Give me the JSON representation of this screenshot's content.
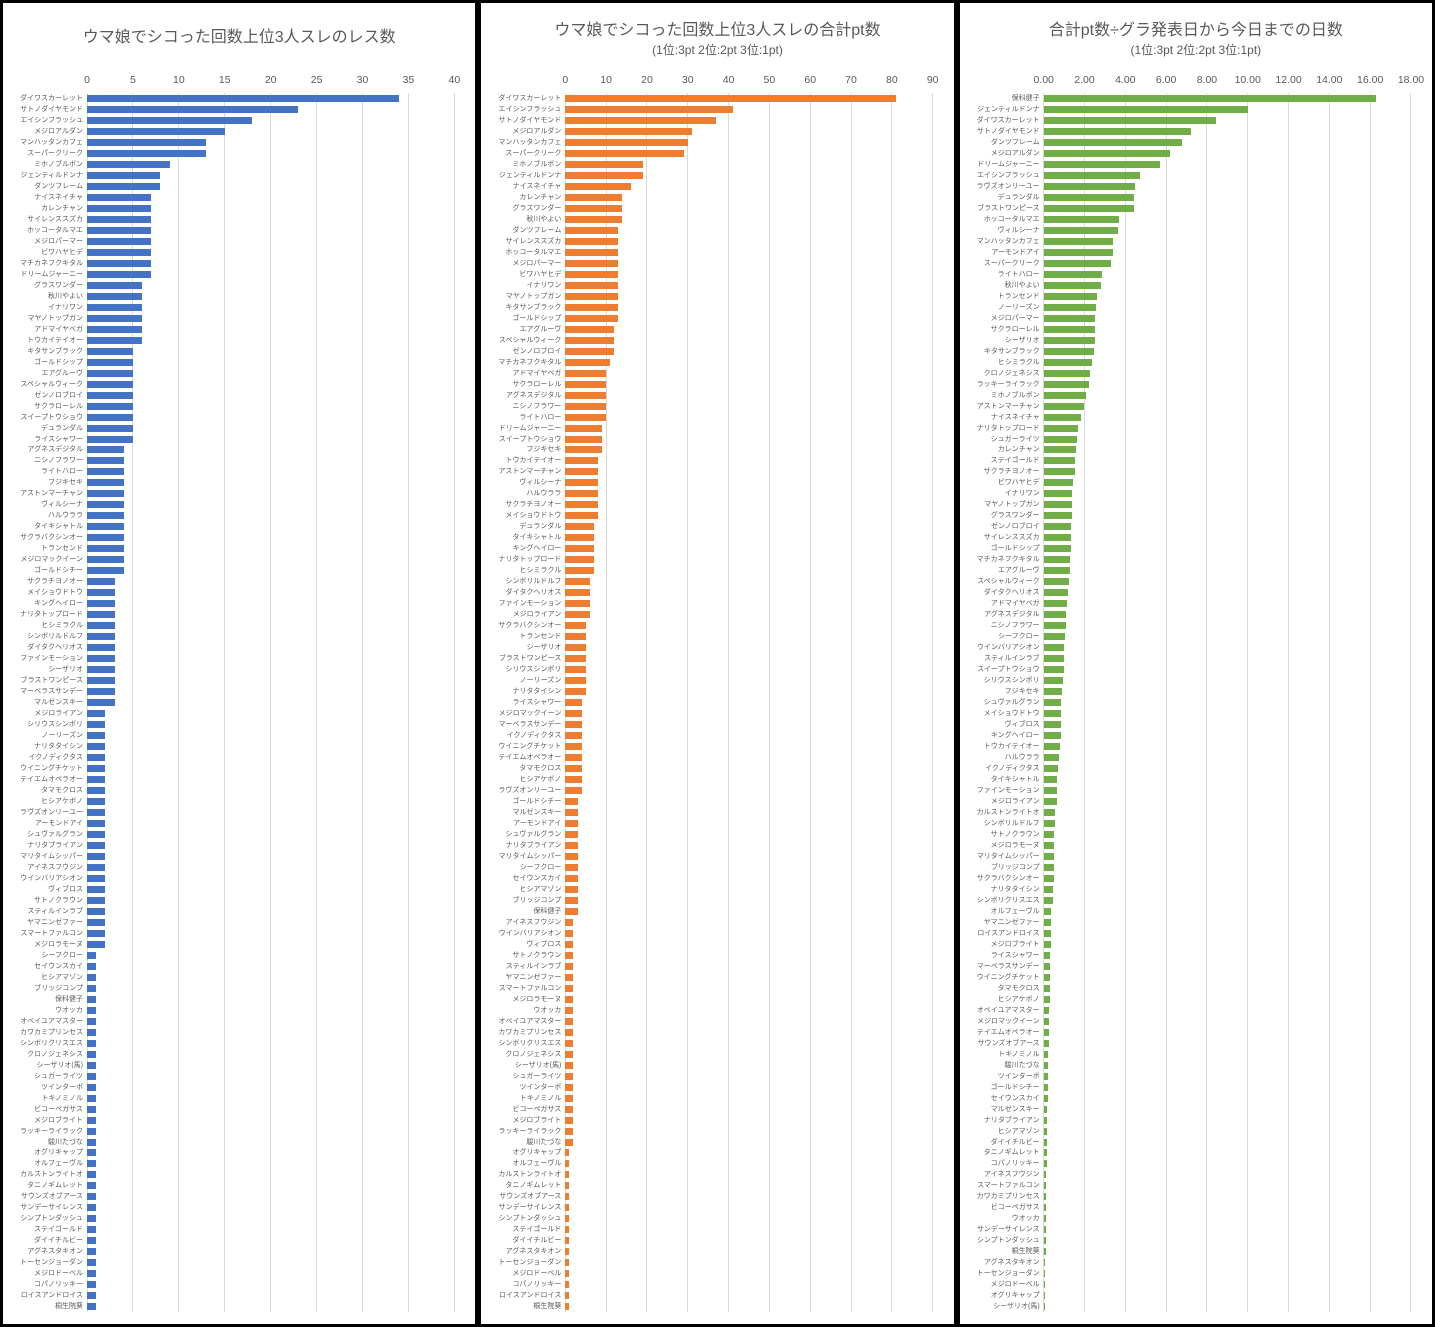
{
  "colors": {
    "blue": "#4472C4",
    "orange": "#ED7D31",
    "green": "#70AD47",
    "grid": "#D9D9D9",
    "text": "#595959"
  },
  "chart_data": [
    {
      "type": "bar",
      "orientation": "horizontal",
      "title": "ウマ娘でシコった回数上位3人スレのレス数",
      "subtitle": "",
      "legend": "none",
      "grid": "vertical",
      "color": "#4472C4",
      "axis": {
        "min": 0,
        "max": 40,
        "step": 5,
        "ticks": [
          "0",
          "5",
          "10",
          "15",
          "20",
          "25",
          "30",
          "35",
          "40"
        ]
      },
      "categories": [
        "ダイワスカーレット",
        "サトノダイヤモンド",
        "エイシンフラッシュ",
        "メジロアルダン",
        "マンハッタンカフェ",
        "スーパークリーク",
        "ミホノブルボン",
        "ジェンティルドンナ",
        "ダンツフレーム",
        "ナイスネイチャ",
        "カレンチャン",
        "サイレンススズカ",
        "ホッコータルマエ",
        "メジロパーマー",
        "ビワハヤヒデ",
        "マチカネフクキタル",
        "ドリームジャーニー",
        "グラスワンダー",
        "秋川やよい",
        "イナリワン",
        "マヤノトップガン",
        "アドマイヤベガ",
        "トウカイテイオー",
        "キタサンブラック",
        "ゴールドシップ",
        "エアグルーヴ",
        "スペシャルウィーク",
        "ゼンノロブロイ",
        "サクラローレル",
        "スイープトウショウ",
        "デュランダル",
        "ライスシャワー",
        "アグネスデジタル",
        "ニシノフラワー",
        "ライトハロー",
        "フジキセキ",
        "アストンマーチャン",
        "ヴィルシーナ",
        "ハルウララ",
        "タイキシャトル",
        "サクラバクシンオー",
        "トランセンド",
        "メジロマックイーン",
        "ゴールドシチー",
        "サクラチヨノオー",
        "メイショウドトウ",
        "キングヘイロー",
        "ナリタトップロード",
        "ヒシミラクル",
        "シンボリルドルフ",
        "ダイタクヘリオス",
        "ファインモーション",
        "シーザリオ",
        "ブラストワンピース",
        "マーベラスサンデー",
        "マルゼンスキー",
        "メジロライアン",
        "シリウスシンボリ",
        "ノーリーズン",
        "ナリタタイシン",
        "イクノディクタス",
        "ウイニングチケット",
        "テイエムオペラオー",
        "タマモクロス",
        "ヒシアケボノ",
        "ラヴズオンリーユー",
        "アーモンドアイ",
        "シュヴァルグラン",
        "ナリタブライアン",
        "マリタイムシッパー",
        "アイネスフウジン",
        "ウインバリアシオン",
        "ヴィブロス",
        "サトノクラウン",
        "スティルインラブ",
        "ヤマニンゼファー",
        "スマートファルコン",
        "メジロラモーヌ",
        "シーフクロー",
        "セイウンスカイ",
        "ヒシアマゾン",
        "ブリッジコンプ",
        "保科健子",
        "ウオッカ",
        "オベイユアマスター",
        "カワカミプリンセス",
        "シンボリクリスエス",
        "クロノジェネシス",
        "シーザリオ(馬)",
        "シュガーライツ",
        "ツインターボ",
        "トキノミノル",
        "ビコーペガサス",
        "メジロブライト",
        "ラッキーライラック",
        "駿川たづな",
        "オグリキャップ",
        "オルフェーヴル",
        "カルストンライトオ",
        "タニノギムレット",
        "サウンズオブアース",
        "サンデーサイレンス",
        "シンプトンダッシュ",
        "ステイゴールド",
        "ダイイチルビー",
        "アグネスタキオン",
        "トーセンジョーダン",
        "メジロドーベル",
        "コパノリッキー",
        "ロイスアンドロイス",
        "桐生院葵"
      ],
      "values": [
        34,
        23,
        18,
        15,
        13,
        13,
        9,
        8,
        8,
        7,
        7,
        7,
        7,
        7,
        7,
        7,
        7,
        6,
        6,
        6,
        6,
        6,
        6,
        5,
        5,
        5,
        5,
        5,
        5,
        5,
        5,
        5,
        4,
        4,
        4,
        4,
        4,
        4,
        4,
        4,
        4,
        4,
        4,
        4,
        3,
        3,
        3,
        3,
        3,
        3,
        3,
        3,
        3,
        3,
        3,
        3,
        2,
        2,
        2,
        2,
        2,
        2,
        2,
        2,
        2,
        2,
        2,
        2,
        2,
        2,
        2,
        2,
        2,
        2,
        2,
        2,
        2,
        2,
        1,
        1,
        1,
        1,
        1,
        1,
        1,
        1,
        1,
        1,
        1,
        1,
        1,
        1,
        1,
        1,
        1,
        1,
        1,
        1,
        1,
        1,
        1,
        1,
        1,
        1,
        1,
        1,
        1,
        1,
        1,
        1,
        1
      ]
    },
    {
      "type": "bar",
      "orientation": "horizontal",
      "title": "ウマ娘でシコった回数上位3人スレの合計pt数",
      "subtitle": "(1位:3pt 2位:2pt 3位:1pt)",
      "legend": "none",
      "grid": "vertical",
      "color": "#ED7D31",
      "axis": {
        "min": 0,
        "max": 90,
        "step": 10,
        "ticks": [
          "0",
          "10",
          "20",
          "30",
          "40",
          "50",
          "60",
          "70",
          "80",
          "90"
        ]
      },
      "categories": [
        "ダイワスカーレット",
        "エイシンフラッシュ",
        "サトノダイヤモンド",
        "メジロアルダン",
        "マンハッタンカフェ",
        "スーパークリーク",
        "ミホノブルボン",
        "ジェンティルドンナ",
        "ナイスネイチャ",
        "カレンチャン",
        "グラスワンダー",
        "秋川やよい",
        "ダンツフレーム",
        "サイレンススズカ",
        "ホッコータルマエ",
        "メジロパーマー",
        "ビワハヤヒデ",
        "イナリワン",
        "マヤノトップガン",
        "キタサンブラック",
        "ゴールドシップ",
        "エアグルーヴ",
        "スペシャルウィーク",
        "ゼンノロブロイ",
        "マチカネフクキタル",
        "アドマイヤベガ",
        "サクラローレル",
        "アグネスデジタル",
        "ニシノフラワー",
        "ライトハロー",
        "ドリームジャーニー",
        "スイープトウショウ",
        "フジキセキ",
        "トウカイテイオー",
        "アストンマーチャン",
        "ヴィルシーナ",
        "ハルウララ",
        "サクラチヨノオー",
        "メイショウドトウ",
        "デュランダル",
        "タイキシャトル",
        "キングヘイロー",
        "ナリタトップロード",
        "ヒシミラクル",
        "シンボリルドルフ",
        "ダイタクヘリオス",
        "ファインモーション",
        "メジロライアン",
        "サクラバクシンオー",
        "トランセンド",
        "シーザリオ",
        "ブラストワンピース",
        "シリウスシンボリ",
        "ノーリーズン",
        "ナリタタイシン",
        "ライスシャワー",
        "メジロマックイーン",
        "マーベラスサンデー",
        "イクノディクタス",
        "ウイニングチケット",
        "テイエムオペラオー",
        "タマモクロス",
        "ヒシアケボノ",
        "ラヴズオンリーユー",
        "ゴールドシチー",
        "マルゼンスキー",
        "アーモンドアイ",
        "シュヴァルグラン",
        "ナリタブライアン",
        "マリタイムシッパー",
        "シーフクロー",
        "セイウンスカイ",
        "ヒシアマゾン",
        "ブリッジコンプ",
        "保科健子",
        "アイネスフウジン",
        "ウインバリアシオン",
        "ヴィブロス",
        "サトノクラウン",
        "スティルインラブ",
        "ヤマニンゼファー",
        "スマートファルコン",
        "メジロラモーヌ",
        "ウオッカ",
        "オベイユアマスター",
        "カワカミプリンセス",
        "シンボリクリスエス",
        "クロノジェネシス",
        "シーザリオ(馬)",
        "シュガーライツ",
        "ツインターボ",
        "トキノミノル",
        "ビコーペガサス",
        "メジロブライト",
        "ラッキーライラック",
        "駿川たづな",
        "オグリキャップ",
        "オルフェーヴル",
        "カルストンライトオ",
        "タニノギムレット",
        "サウンズオブアース",
        "サンデーサイレンス",
        "シンプトンダッシュ",
        "ステイゴールド",
        "ダイイチルビー",
        "アグネスタキオン",
        "トーセンジョーダン",
        "メジロドーベル",
        "コパノリッキー",
        "ロイスアンドロイス",
        "桐生院葵"
      ],
      "values": [
        81,
        41,
        37,
        31,
        30,
        29,
        19,
        19,
        16,
        14,
        14,
        14,
        13,
        13,
        13,
        13,
        13,
        13,
        13,
        13,
        13,
        12,
        12,
        12,
        11,
        10,
        10,
        10,
        10,
        10,
        9,
        9,
        9,
        8,
        8,
        8,
        8,
        8,
        8,
        7,
        7,
        7,
        7,
        7,
        6,
        6,
        6,
        6,
        5,
        5,
        5,
        5,
        5,
        5,
        5,
        4,
        4,
        4,
        4,
        4,
        4,
        4,
        4,
        4,
        3,
        3,
        3,
        3,
        3,
        3,
        3,
        3,
        3,
        3,
        3,
        2,
        2,
        2,
        2,
        2,
        2,
        2,
        2,
        2,
        2,
        2,
        2,
        2,
        2,
        2,
        2,
        2,
        2,
        2,
        2,
        2,
        1,
        1,
        1,
        1,
        1,
        1,
        1,
        1,
        1,
        1,
        1,
        1,
        1,
        1,
        1
      ]
    },
    {
      "type": "bar",
      "orientation": "horizontal",
      "title": "合計pt数÷グラ発表日から今日までの日数",
      "subtitle": "(1位:3pt 2位:2pt 3位:1pt)",
      "legend": "none",
      "grid": "vertical",
      "color": "#70AD47",
      "axis": {
        "min": 0,
        "max": 18,
        "step": 2,
        "ticks": [
          "0.00",
          "2.00",
          "4.00",
          "6.00",
          "8.00",
          "10.00",
          "12.00",
          "14.00",
          "16.00",
          "18.00"
        ]
      },
      "categories": [
        "保科健子",
        "ジェンティルドンナ",
        "ダイワスカーレット",
        "サトノダイヤモンド",
        "ダンツフレーム",
        "メジロアルダン",
        "ドリームジャーニー",
        "エイシンフラッシュ",
        "ラヴズオンリーユー",
        "デュランダル",
        "ブラストワンピース",
        "ホッコータルマエ",
        "ヴィルシーナ",
        "マンハッタンカフェ",
        "アーモンドアイ",
        "スーパークリーク",
        "ライトハロー",
        "秋川やよい",
        "トランセンド",
        "ノーリーズン",
        "メジロパーマー",
        "サクラローレル",
        "シーザリオ",
        "キタサンブラック",
        "ヒシミラクル",
        "クロノジェネシス",
        "ラッキーライラック",
        "ミホノブルボン",
        "アストンマーチャン",
        "ナイスネイチャ",
        "ナリタトップロード",
        "シュガーライツ",
        "カレンチャン",
        "ステイゴールド",
        "サクラチヨノオー",
        "ビワハヤヒデ",
        "イナリワン",
        "マヤノトップガン",
        "グラスワンダー",
        "ゼンノロブロイ",
        "サイレンススズカ",
        "ゴールドシップ",
        "マチカネフクキタル",
        "エアグルーヴ",
        "スペシャルウィーク",
        "ダイタクヘリオス",
        "アドマイヤベガ",
        "アグネスデジタル",
        "ニシノフラワー",
        "シーフクロー",
        "ウインバリアシオン",
        "スティルインラブ",
        "スイープトウショウ",
        "シリウスシンボリ",
        "フジキセキ",
        "シュヴァルグラン",
        "メイショウドトウ",
        "ヴィブロス",
        "キングヘイロー",
        "トウカイテイオー",
        "ハルウララ",
        "イクノディクタス",
        "タイキシャトル",
        "ファインモーション",
        "メジロライアン",
        "カルストンライトオ",
        "シンボリルドルフ",
        "サトノクラウン",
        "メジロラモーヌ",
        "マリタイムシッパー",
        "ブリッジコンプ",
        "サクラバクシンオー",
        "ナリタタイシン",
        "シンボリクリスエス",
        "オルフェーヴル",
        "ヤマニンゼファー",
        "ロイスアンドロイス",
        "メジロブライト",
        "ライスシャワー",
        "マーベラスサンデー",
        "ウイニングチケット",
        "タマモクロス",
        "ヒシアケボノ",
        "オベイユアマスター",
        "メジロマックイーン",
        "テイエムオペラオー",
        "サウンズオブアース",
        "トキノミノル",
        "駿川たづな",
        "ツインターボ",
        "ゴールドシチー",
        "セイウンスカイ",
        "マルゼンスキー",
        "ナリタブライアン",
        "ヒシアマゾン",
        "ダイイチルビー",
        "タニノギムレット",
        "コパノリッキー",
        "アイネスフウジン",
        "スマートファルコン",
        "カワカミプリンセス",
        "ビコーペガサス",
        "ウオッカ",
        "サンデーサイレンス",
        "シンプトンダッシュ",
        "桐生院葵",
        "アグネスタキオン",
        "トーセンジョーダン",
        "メジロドーベル",
        "オグリキャップ",
        "シーザリオ(馬)"
      ],
      "values": [
        16.3,
        10.0,
        8.45,
        7.2,
        6.8,
        6.2,
        5.72,
        4.7,
        4.5,
        4.45,
        4.43,
        3.7,
        3.65,
        3.42,
        3.4,
        3.32,
        2.88,
        2.8,
        2.6,
        2.58,
        2.53,
        2.52,
        2.5,
        2.47,
        2.35,
        2.25,
        2.2,
        2.08,
        1.98,
        1.81,
        1.7,
        1.63,
        1.58,
        1.55,
        1.53,
        1.45,
        1.41,
        1.4,
        1.39,
        1.36,
        1.34,
        1.32,
        1.28,
        1.27,
        1.26,
        1.18,
        1.12,
        1.11,
        1.08,
        1.06,
        1.02,
        1.01,
        1.0,
        0.96,
        0.9,
        0.87,
        0.86,
        0.85,
        0.83,
        0.78,
        0.75,
        0.72,
        0.67,
        0.65,
        0.64,
        0.57,
        0.56,
        0.53,
        0.52,
        0.51,
        0.5,
        0.49,
        0.47,
        0.46,
        0.38,
        0.36,
        0.34,
        0.34,
        0.33,
        0.33,
        0.31,
        0.29,
        0.29,
        0.28,
        0.26,
        0.25,
        0.25,
        0.23,
        0.23,
        0.21,
        0.2,
        0.2,
        0.18,
        0.18,
        0.18,
        0.16,
        0.15,
        0.15,
        0.13,
        0.13,
        0.13,
        0.11,
        0.11,
        0.1,
        0.1,
        0.1,
        0.05,
        0.05,
        0.05,
        0.04,
        0.04
      ]
    }
  ]
}
